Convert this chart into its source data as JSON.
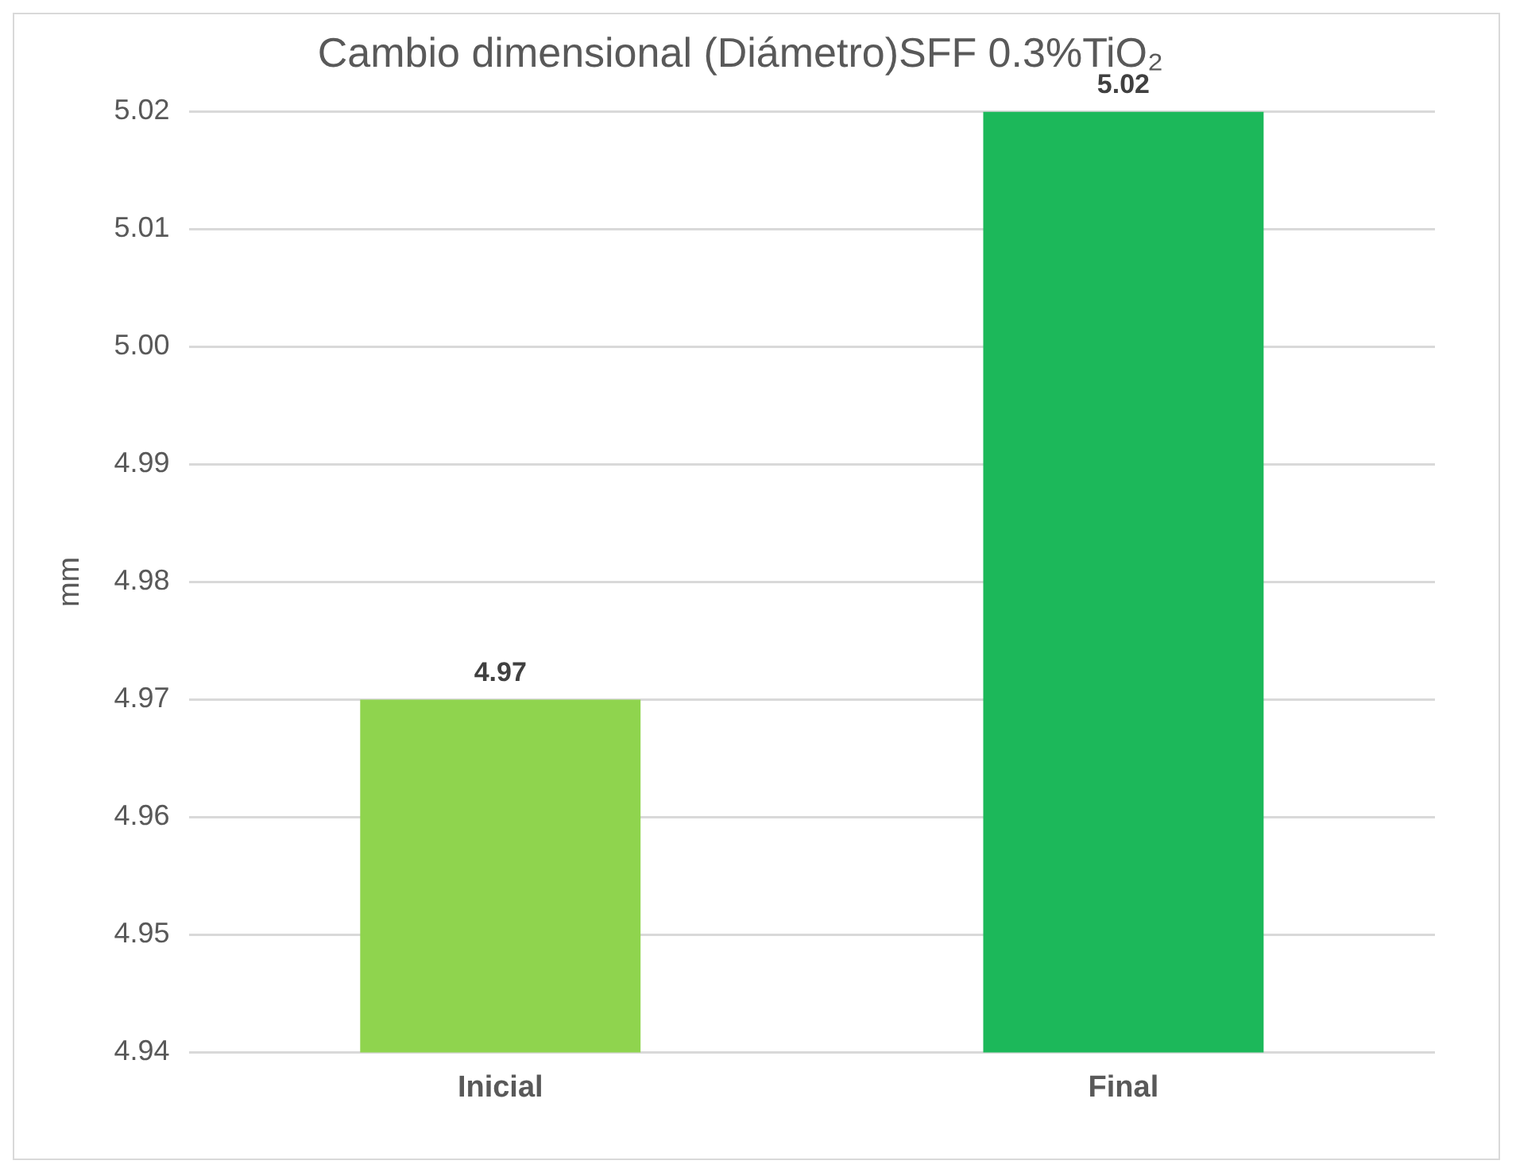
{
  "chart_data": {
    "type": "bar",
    "title": "Cambio dimensional (Diámetro)SFF 0.3%TiO₂",
    "ylabel": "mm",
    "categories": [
      "Inicial",
      "Final"
    ],
    "values": [
      4.97,
      5.02
    ],
    "colors": [
      "#8fd44e",
      "#1cb85a"
    ],
    "ylim": [
      4.94,
      5.02
    ],
    "yticks": [
      4.94,
      4.95,
      4.96,
      4.97,
      4.98,
      4.99,
      {
        "value": 5,
        "label": "5.00"
      },
      5.01,
      5.02
    ],
    "grid": "y",
    "legend": false,
    "data_labels": true
  }
}
